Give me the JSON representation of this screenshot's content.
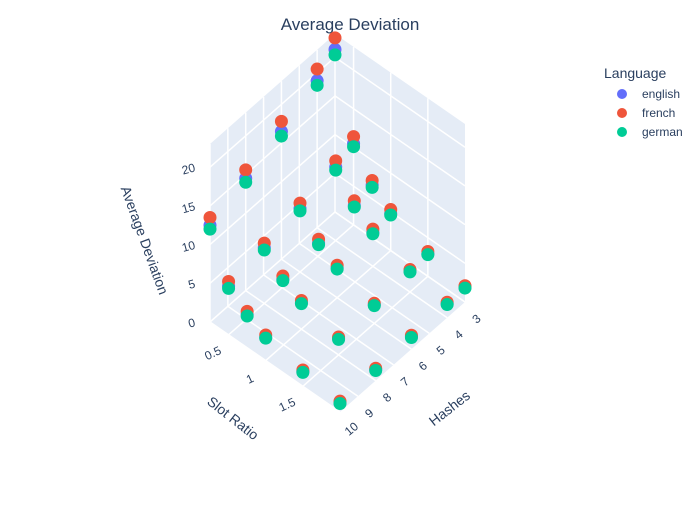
{
  "chart_data": {
    "type": "scatter3d",
    "title": "Average Deviation",
    "x_label": "Slot Ratio",
    "y_label": "Hashes",
    "z_label": "Average Deviation",
    "x": [
      0.25,
      0.25,
      0.25,
      0.25,
      0.25,
      0.5,
      0.5,
      0.5,
      0.5,
      0.5,
      0.75,
      0.75,
      0.75,
      0.75,
      0.75,
      1,
      1,
      1,
      1,
      1,
      1.5,
      1.5,
      1.5,
      1.5,
      1.5,
      2,
      2,
      2,
      2,
      2
    ],
    "y": [
      3,
      4,
      6,
      8,
      10,
      3,
      4,
      6,
      8,
      10,
      3,
      4,
      6,
      8,
      10,
      3,
      4,
      6,
      8,
      10,
      3,
      4,
      6,
      8,
      10,
      3,
      4,
      6,
      8,
      10
    ],
    "xlim": [
      0.25,
      2
    ],
    "ylim": [
      3,
      10
    ],
    "zlim": [
      0,
      23
    ],
    "xticks": [
      0.5,
      1,
      1.5
    ],
    "yticks": [
      3,
      4,
      5,
      6,
      7,
      8,
      9,
      10
    ],
    "zticks": [
      0,
      5,
      10,
      15,
      20
    ],
    "legend_title": "Language",
    "series": [
      {
        "name": "english",
        "color": "#636efa",
        "values": [
          21,
          19,
          16.5,
          14.5,
          12.5,
          10.5,
          9.5,
          8.2,
          7.2,
          6.3,
          6.8,
          6.2,
          5.4,
          4.8,
          4.3,
          4.8,
          4.4,
          3.9,
          3.4,
          3,
          2.9,
          2.7,
          2.4,
          2.1,
          1.9,
          1.9,
          1.8,
          1.6,
          1.4,
          1.2
        ]
      },
      {
        "name": "french",
        "color": "#EF553B",
        "values": [
          22.5,
          20.5,
          17.8,
          15.6,
          13.5,
          11.4,
          10.3,
          8.9,
          7.8,
          6.9,
          7.4,
          6.8,
          5.9,
          5.2,
          4.7,
          5.3,
          4.8,
          4.2,
          3.7,
          3.3,
          3.2,
          2.9,
          2.6,
          2.3,
          2.1,
          2.1,
          2,
          1.8,
          1.6,
          1.4
        ]
      },
      {
        "name": "german",
        "color": "#00cc96",
        "values": [
          20.3,
          18.4,
          15.9,
          14,
          12,
          10.1,
          9.1,
          7.9,
          6.9,
          6,
          6.5,
          6,
          5.2,
          4.6,
          4.1,
          4.6,
          4.2,
          3.7,
          3.3,
          2.9,
          2.8,
          2.6,
          2.3,
          2,
          1.8,
          1.8,
          1.7,
          1.5,
          1.3,
          1.1
        ]
      }
    ]
  }
}
